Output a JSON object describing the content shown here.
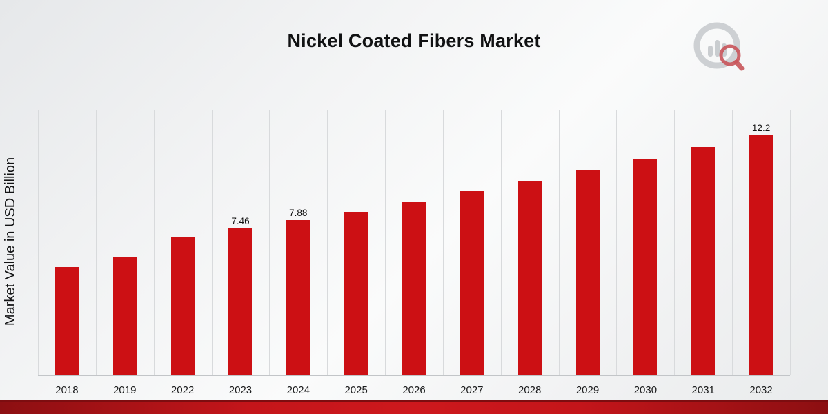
{
  "title": "Nickel Coated Fibers Market",
  "y_axis_label": "Market Value in USD Billion",
  "logo": {
    "name": "chart-magnifier-logo"
  },
  "colors": {
    "bar": "#cc1014",
    "banner": "#c4151a",
    "gridline": "#d8dadc",
    "background": "#f0f1f2"
  },
  "chart_data": {
    "type": "bar",
    "title": "Nickel Coated Fibers Market",
    "xlabel": "",
    "ylabel": "Market Value in USD Billion",
    "categories": [
      "2018",
      "2019",
      "2022",
      "2023",
      "2024",
      "2025",
      "2026",
      "2027",
      "2028",
      "2029",
      "2030",
      "2031",
      "2032"
    ],
    "values": [
      5.5,
      6.0,
      7.05,
      7.46,
      7.88,
      8.3,
      8.8,
      9.35,
      9.85,
      10.4,
      11.0,
      11.6,
      12.2
    ],
    "data_labels": {
      "2023": "7.46",
      "2024": "7.88",
      "2032": "12.2"
    },
    "ylim": [
      0,
      13.5
    ],
    "grid": "vertical",
    "legend": "none",
    "bar_color": "#cc1014"
  }
}
